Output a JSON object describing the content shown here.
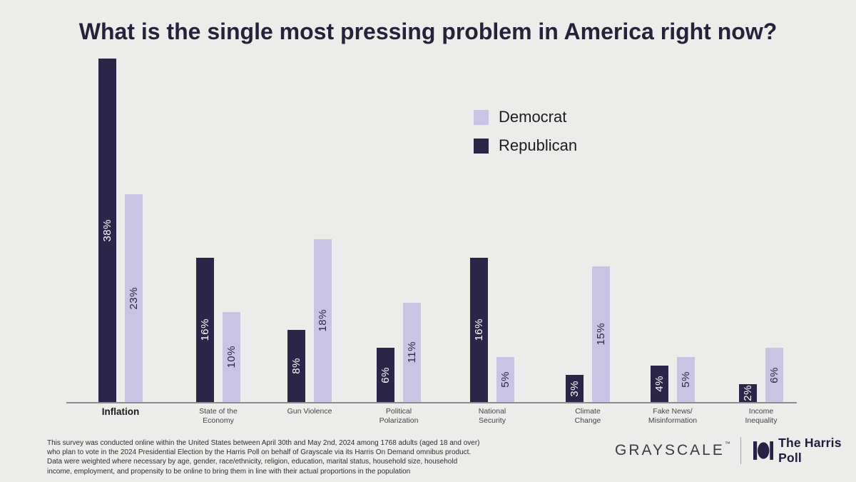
{
  "title": "What is the single most pressing problem in America right now?",
  "legend": {
    "items": [
      {
        "label": "Democrat",
        "color": "#c9c4e4"
      },
      {
        "label": "Republican",
        "color": "#2b2548"
      }
    ]
  },
  "chart_data": {
    "type": "bar",
    "title": "What is the single most pressing problem in America right now?",
    "categories": [
      "Inflation",
      "State of the Economy",
      "Gun Violence",
      "Political Polarization",
      "National Security",
      "Climate Change",
      "Fake News/Misinformation",
      "Income Inequality"
    ],
    "category_label_lines": [
      [
        "Inflation"
      ],
      [
        "State of the",
        "Economy"
      ],
      [
        "Gun Violence"
      ],
      [
        "Political",
        "Polarization"
      ],
      [
        "National",
        "Security"
      ],
      [
        "Climate",
        "Change"
      ],
      [
        "Fake News/",
        "Misinformation"
      ],
      [
        "Income",
        "Inequality"
      ]
    ],
    "bold_categories": [
      "Inflation"
    ],
    "series": [
      {
        "name": "Republican",
        "color": "#2b2548",
        "label_color": "#ffffff",
        "values": [
          38,
          16,
          8,
          6,
          16,
          3,
          4,
          2
        ]
      },
      {
        "name": "Democrat",
        "color": "#c9c4e4",
        "label_color": "#2b2548",
        "values": [
          23,
          10,
          18,
          11,
          5,
          15,
          5,
          6
        ]
      }
    ],
    "value_suffix": "%",
    "xlabel": "",
    "ylabel": "",
    "ylim": [
      0,
      40
    ],
    "grid": false,
    "legend_position": "upper right of plot, inside",
    "bar_labels": "rotated 90deg, centered inside bars"
  },
  "footnote": "This survey was conducted online within the United States between April 30th and May 2nd, 2024 among 1768 adults (aged 18 and over)\nwho plan to vote in the 2024 Presidential Election by the Harris Poll on behalf of Grayscale via its Harris On Demand omnibus product.\nData were weighted where necessary by age, gender, race/ethnicity, religion, education, marital status, household size, household\nincome, employment, and propensity to be online to bring them in line with their actual proportions in the population",
  "footer": {
    "grayscale_wordmark": "GRAYSCALE",
    "grayscale_trademark": "™",
    "harris_poll_label": "The Harris Poll"
  }
}
